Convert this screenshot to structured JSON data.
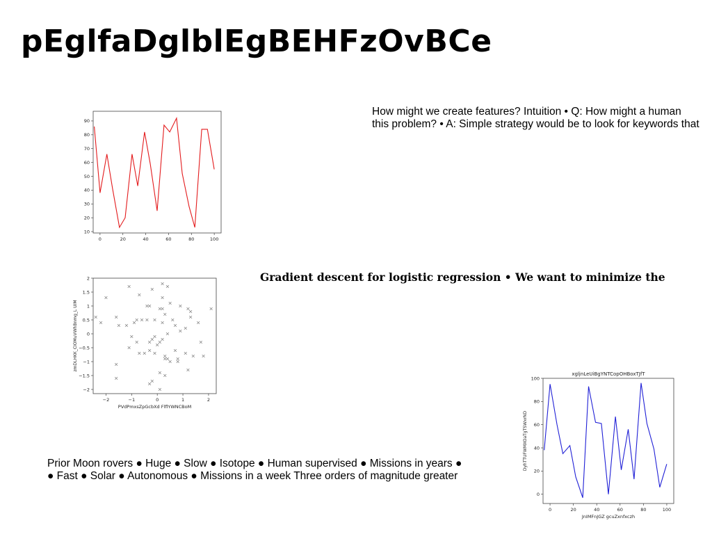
{
  "slide": {
    "title": "pEglfaDglblEgBEHFzOvBCe",
    "text_top": [
      "How might we create features? Intuition • Q: How might a human",
      "this problem? • A: Simple strategy would be to look for keywords that"
    ],
    "text_middle": "Gradient descent for logistic regression • We want to minimize the",
    "text_bottom": [
      "Prior Moon rovers ● Huge ● Slow ● Isotope ● Human supervised ● Missions in years ●",
      "● Fast ● Solar ● Autonomous ● Missions in a week Three orders of magnitude greater"
    ]
  },
  "chart_data": [
    {
      "type": "line",
      "title": "",
      "xlabel": "",
      "ylabel": "",
      "color": "#e31a1c",
      "xlim": [
        -6,
        106
      ],
      "ylim": [
        9,
        97
      ],
      "xticks": [
        0,
        20,
        40,
        60,
        80,
        100
      ],
      "yticks": [
        10,
        20,
        30,
        40,
        50,
        60,
        70,
        80,
        90
      ],
      "x": [
        -5,
        0,
        6,
        11,
        17,
        22,
        28,
        33,
        39,
        44,
        50,
        56,
        61,
        67,
        72,
        78,
        83,
        89,
        94,
        100
      ],
      "y": [
        86,
        38,
        66,
        41,
        13,
        20,
        66,
        43,
        82,
        59,
        25,
        87,
        82,
        92,
        52,
        28,
        13,
        84,
        84,
        55
      ]
    },
    {
      "type": "scatter",
      "title": "",
      "xlabel": "PVdPmxsZpGcbXd FlflYWNCBoM",
      "ylabel": "zmDLHKK_CIOMuVWhBnmg_L UIM",
      "color": "#888888",
      "xlim": [
        -2.5,
        2.3
      ],
      "ylim": [
        -2.15,
        2.0
      ],
      "xticks": [
        -2,
        -1,
        0,
        1,
        2
      ],
      "yticks": [
        -2.0,
        -1.5,
        -1.0,
        -0.5,
        0.0,
        0.5,
        1.0,
        1.5,
        2.0
      ],
      "points": [
        [
          -2.4,
          0.6
        ],
        [
          -2.2,
          0.4
        ],
        [
          -2.0,
          1.3
        ],
        [
          -1.6,
          0.6
        ],
        [
          -1.5,
          0.3
        ],
        [
          -1.6,
          -1.1
        ],
        [
          -1.6,
          -1.6
        ],
        [
          -1.2,
          0.3
        ],
        [
          -1.1,
          -0.5
        ],
        [
          -1.0,
          -0.1
        ],
        [
          -1.1,
          1.7
        ],
        [
          -0.9,
          0.4
        ],
        [
          -0.8,
          -0.3
        ],
        [
          -0.7,
          -0.7
        ],
        [
          -0.6,
          0.5
        ],
        [
          -0.7,
          1.4
        ],
        [
          -0.5,
          -0.7
        ],
        [
          -0.4,
          1.0
        ],
        [
          -0.4,
          0.5
        ],
        [
          -0.3,
          -0.3
        ],
        [
          -0.3,
          1.0
        ],
        [
          -0.3,
          -0.6
        ],
        [
          -0.2,
          -0.2
        ],
        [
          -0.2,
          1.6
        ],
        [
          -0.1,
          -0.1
        ],
        [
          -0.1,
          0.5
        ],
        [
          0.0,
          -0.4
        ],
        [
          0.1,
          -0.3
        ],
        [
          0.1,
          0.9
        ],
        [
          0.1,
          -1.4
        ],
        [
          0.2,
          1.8
        ],
        [
          0.2,
          0.4
        ],
        [
          0.2,
          -0.2
        ],
        [
          0.3,
          0.7
        ],
        [
          0.3,
          -0.8
        ],
        [
          0.3,
          -1.5
        ],
        [
          0.4,
          1.7
        ],
        [
          0.4,
          -0.9
        ],
        [
          0.5,
          1.1
        ],
        [
          0.5,
          -1.0
        ],
        [
          0.6,
          0.5
        ],
        [
          0.7,
          0.3
        ],
        [
          0.7,
          -0.6
        ],
        [
          0.8,
          -0.9
        ],
        [
          0.9,
          0.1
        ],
        [
          0.9,
          1.0
        ],
        [
          1.1,
          0.2
        ],
        [
          1.1,
          -0.7
        ],
        [
          1.2,
          0.9
        ],
        [
          1.3,
          0.8
        ],
        [
          1.2,
          -1.3
        ],
        [
          1.3,
          0.6
        ],
        [
          1.4,
          -0.8
        ],
        [
          1.6,
          0.4
        ],
        [
          1.7,
          -0.3
        ],
        [
          1.8,
          -0.8
        ],
        [
          2.1,
          0.9
        ],
        [
          -0.3,
          -1.8
        ],
        [
          -0.2,
          -1.7
        ],
        [
          0.1,
          -2.0
        ],
        [
          0.2,
          1.3
        ],
        [
          0.2,
          0.9
        ],
        [
          0.4,
          0.0
        ],
        [
          0.3,
          -0.9
        ],
        [
          -0.1,
          -0.7
        ],
        [
          -0.8,
          0.5
        ],
        [
          0.8,
          -1.0
        ]
      ]
    },
    {
      "type": "line",
      "title": "xgljnLeUiBgYNTCopOHBoxTJfT",
      "xlabel": "JnIMFnJGZ gcuZxnfxczh",
      "ylabel": "DyhTTUFWMXOaTgTSWxrND",
      "color": "#1f1fd6",
      "xlim": [
        -6,
        106
      ],
      "ylim": [
        -8,
        100
      ],
      "xticks": [
        0,
        20,
        40,
        60,
        80,
        100
      ],
      "yticks": [
        0,
        20,
        40,
        60,
        80,
        100
      ],
      "x": [
        -5,
        0,
        6,
        11,
        17,
        22,
        28,
        33,
        39,
        44,
        50,
        56,
        61,
        67,
        72,
        78,
        83,
        89,
        94,
        100
      ],
      "y": [
        38,
        95,
        60,
        35,
        42,
        15,
        -3,
        93,
        62,
        61,
        0,
        67,
        21,
        56,
        13,
        96,
        61,
        39,
        6,
        26
      ]
    }
  ]
}
